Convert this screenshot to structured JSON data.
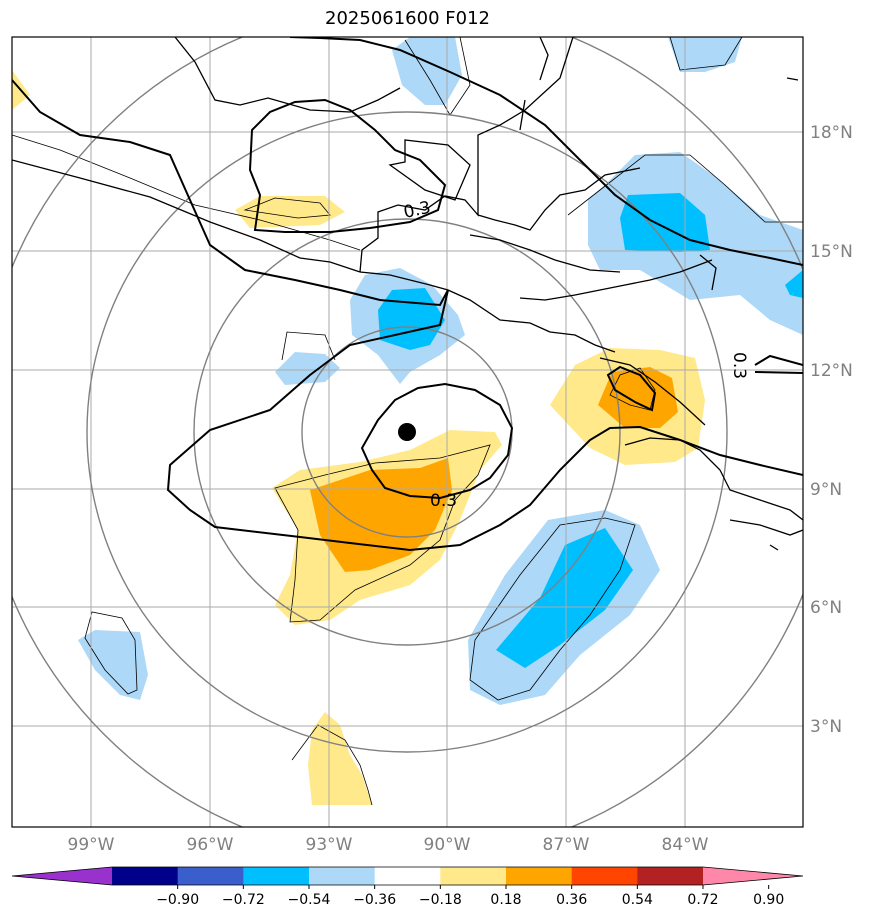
{
  "title": "2025061600 F012",
  "lat_labels": [
    "18°N",
    "15°N",
    "12°N",
    "9°N",
    "6°N",
    "3°N"
  ],
  "lon_labels": [
    "99°W",
    "96°W",
    "93°W",
    "90°W",
    "87°W",
    "84°W"
  ],
  "contour_labels": [
    "0.3",
    "0.3",
    "0.3"
  ],
  "colorbar": {
    "ticks": [
      "−0.90",
      "−0.72",
      "−0.54",
      "−0.36",
      "−0.18",
      "0.18",
      "0.36",
      "0.54",
      "0.72",
      "0.90"
    ],
    "colors": [
      "#9932cc",
      "#00008b",
      "#3a5fcd",
      "#00bfff",
      "#add8f7",
      "#ffffff",
      "#ffe98a",
      "#ffa500",
      "#ff4500",
      "#b22222",
      "#ff88aa"
    ]
  },
  "center_marker": {
    "lat": 10.4,
    "lon": "91.0°W"
  },
  "colors": {
    "light_blue": "#add8f7",
    "blue": "#00bfff",
    "light_yellow": "#ffe98a",
    "orange": "#ffa500",
    "grid": "#aaaaaa",
    "rings": "#808080"
  }
}
